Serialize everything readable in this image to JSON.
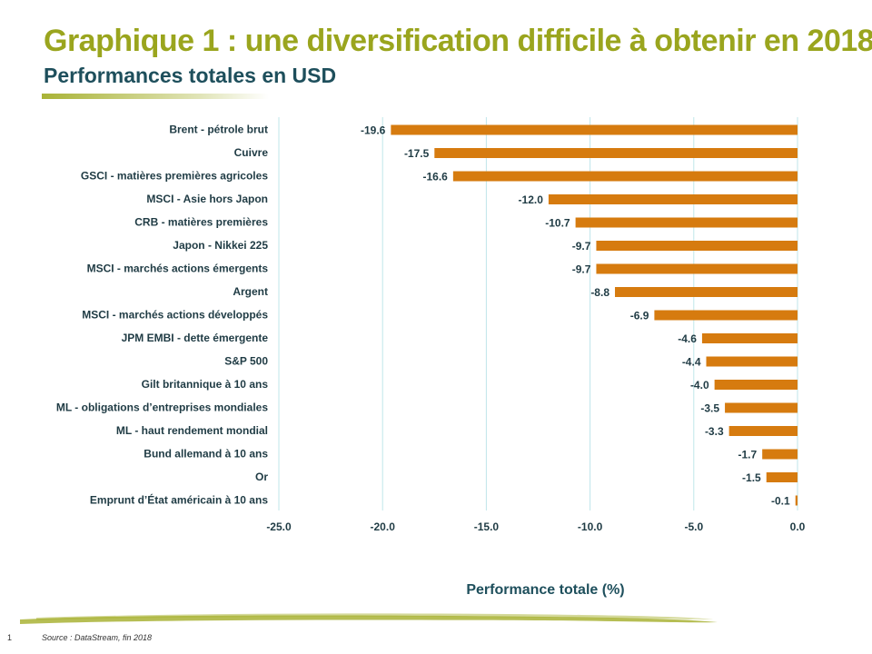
{
  "slide": {
    "title": "Graphique 1 : une diversification difficile à obtenir en 2018…",
    "subtitle": "Performances totales en USD",
    "page_number": "1",
    "source": "Source : DataStream, fin 2018"
  },
  "colors": {
    "title": "#9AA51E",
    "subtitle": "#1E4F5C",
    "bar": "#D67B0F",
    "grid": "#BFE6EA",
    "accent_stroke": "#A9B336"
  },
  "chart_data": {
    "type": "bar",
    "orientation": "horizontal",
    "categories": [
      "Brent - pétrole brut",
      "Cuivre",
      "GSCI - matières premières agricoles",
      "MSCI - Asie hors Japon",
      "CRB - matières premières",
      "Japon - Nikkei 225",
      "MSCI - marchés actions émergents",
      "Argent",
      "MSCI - marchés actions développés",
      "JPM EMBI - dette émergente",
      "S&P 500",
      "Gilt britannique à 10 ans",
      "ML - obligations d’entreprises mondiales",
      "ML - haut rendement mondial",
      "Bund allemand à 10 ans",
      "Or",
      "Emprunt d’État américain à 10 ans"
    ],
    "values": [
      -19.6,
      -17.5,
      -16.6,
      -12.0,
      -10.7,
      -9.7,
      -9.7,
      -8.8,
      -6.9,
      -4.6,
      -4.4,
      -4.0,
      -3.5,
      -3.3,
      -1.7,
      -1.5,
      -0.1
    ],
    "value_labels": [
      "-19.6",
      "-17.5",
      "-16.6",
      "-12.0",
      "-10.7",
      "-9.7",
      "-9.7",
      "-8.8",
      "-6.9",
      "-4.6",
      "-4.4",
      "-4.0",
      "-3.5",
      "-3.3",
      "-1.7",
      "-1.5",
      "-0.1"
    ],
    "xlabel": "Performance totale (%)",
    "xlim": [
      -25,
      0
    ],
    "ticks": [
      -25,
      -20,
      -15,
      -10,
      -5,
      0
    ],
    "tick_labels": [
      "-25.0",
      "-20.0",
      "-15.0",
      "-10.0",
      "-5.0",
      "0.0"
    ],
    "grid": true,
    "legend": "none"
  }
}
